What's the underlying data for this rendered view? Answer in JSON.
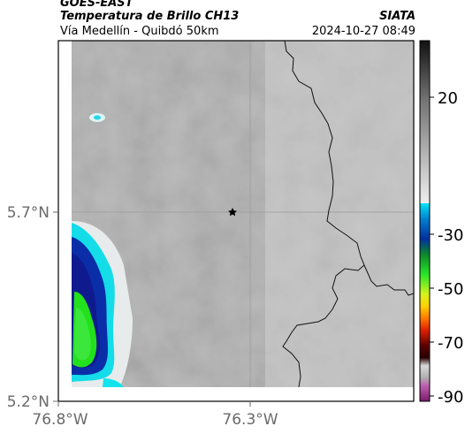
{
  "header": {
    "satellite": "GOES-EAST",
    "product": "Temperatura de Brillo CH13",
    "region": "Vía Medellín - Quibdó 50km",
    "agency": "SIATA",
    "datetime": "2024-10-27 08:49"
  },
  "axes": {
    "lat_ticks": [
      "5.7°N",
      "5.2°N"
    ],
    "lon_ticks": [
      "76.8°W",
      "76.3°W"
    ]
  },
  "colorbar": {
    "ticks": [
      "20",
      "-30",
      "-50",
      "-70",
      "-90"
    ]
  },
  "marker": {
    "name": "star"
  }
}
